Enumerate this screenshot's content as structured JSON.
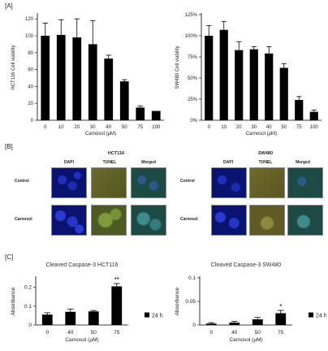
{
  "panel_labels": {
    "a": "[A]",
    "b": "[B]",
    "c": "[C]"
  },
  "colors": {
    "bar": "#000000",
    "dapi": "#0d1a8c",
    "tunel": "#6b6a2a",
    "merged": "#1a4d4a",
    "axis": "#000000"
  },
  "microscopy": {
    "panels": [
      {
        "title": "HCT116",
        "columns": [
          "DAPI",
          "TUNEL",
          "Merged"
        ],
        "rows": [
          "Control",
          "Carnosol"
        ]
      },
      {
        "title": "SW480",
        "columns": [
          "DAPI",
          "TUNEL",
          "Merged"
        ],
        "rows": [
          "Control",
          "Carnosol"
        ]
      }
    ]
  },
  "chart_data": [
    {
      "type": "bar",
      "categories": [
        "0",
        "10",
        "20",
        "30",
        "40",
        "50",
        "75",
        "100"
      ],
      "values": [
        100,
        101,
        98,
        90,
        73,
        46,
        15,
        11
      ],
      "errors": [
        15,
        18,
        22,
        28,
        4,
        2,
        2,
        0
      ],
      "title": "",
      "xlabel": "Carnosol (μM)",
      "ylabel": "HCT116 Cell viability",
      "ylim": [
        0,
        125
      ],
      "yticks": [
        "0",
        "20",
        "40",
        "60",
        "80",
        "100",
        "120"
      ],
      "ytick_values": [
        0,
        20,
        40,
        60,
        80,
        100,
        120
      ]
    },
    {
      "type": "bar",
      "categories": [
        "0",
        "10",
        "20",
        "30",
        "40",
        "50",
        "75",
        "100"
      ],
      "values": [
        100,
        107,
        83,
        84,
        79,
        62,
        24,
        10
      ],
      "errors": [
        12,
        10,
        10,
        3,
        8,
        5,
        4,
        2
      ],
      "title": "",
      "xlabel": "Carnosol (μM)",
      "ylabel": "SW480 Cell viability",
      "ylim": [
        0,
        125
      ],
      "yticks": [
        "0%",
        "25%",
        "50%",
        "75%",
        "100%",
        "125%"
      ],
      "ytick_values": [
        0,
        25,
        50,
        75,
        100,
        125
      ]
    },
    {
      "type": "bar",
      "categories": [
        "0",
        "40",
        "50",
        "75"
      ],
      "values": [
        0.055,
        0.07,
        0.072,
        0.205
      ],
      "errors": [
        0.01,
        0.015,
        0.005,
        0.015
      ],
      "annotations": [
        "",
        "",
        "",
        "**"
      ],
      "title": "Cleaved Caspase-3 HCT116",
      "xlabel": "Carnosol (μM)",
      "ylabel": "Absorbance",
      "ylim": [
        0,
        0.25
      ],
      "yticks": [
        "0",
        "0.1",
        "0.2"
      ],
      "ytick_values": [
        0,
        0.1,
        0.2
      ],
      "legend": "24 h",
      "legend_position": "right"
    },
    {
      "type": "bar",
      "categories": [
        "0",
        "40",
        "50",
        "75"
      ],
      "values": [
        0.003,
        0.005,
        0.012,
        0.025
      ],
      "errors": [
        0.002,
        0.003,
        0.004,
        0.006
      ],
      "annotations": [
        "",
        "",
        "",
        "*"
      ],
      "title": "Cleaved Caspase-3 SW480",
      "xlabel": "Carnosol (μM)",
      "ylabel": "Absorbance",
      "ylim": [
        0,
        0.1
      ],
      "yticks": [
        "0",
        "0.05",
        "0.1"
      ],
      "ytick_values": [
        0,
        0.05,
        0.1
      ],
      "legend": "24 h",
      "legend_position": "right"
    }
  ]
}
